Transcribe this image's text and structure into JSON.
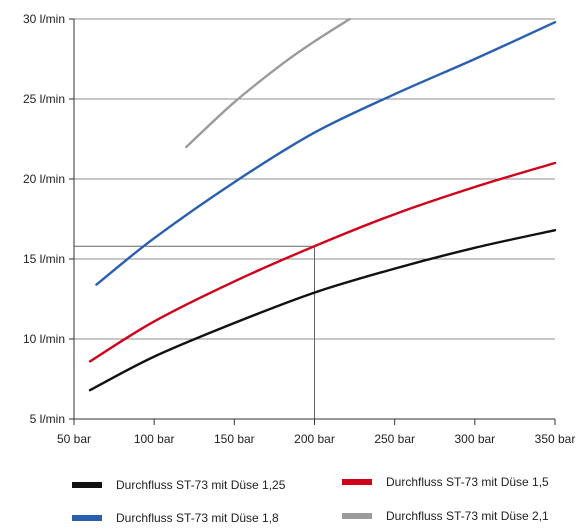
{
  "chart_data": {
    "type": "line",
    "title": "",
    "xlabel": "",
    "ylabel": "",
    "xlim": [
      50,
      350
    ],
    "ylim": [
      5,
      30
    ],
    "x_ticks": [
      {
        "value": 50,
        "label": "50 bar"
      },
      {
        "value": 100,
        "label": "100 bar"
      },
      {
        "value": 150,
        "label": "150 bar"
      },
      {
        "value": 200,
        "label": "200 bar"
      },
      {
        "value": 250,
        "label": "250 bar"
      },
      {
        "value": 300,
        "label": "300 bar"
      },
      {
        "value": 350,
        "label": "350 bar"
      }
    ],
    "y_ticks": [
      {
        "value": 5,
        "label": "5 l/min"
      },
      {
        "value": 10,
        "label": "10 l/min"
      },
      {
        "value": 15,
        "label": "15 l/min"
      },
      {
        "value": 20,
        "label": "20 l/min"
      },
      {
        "value": 25,
        "label": "25 l/min"
      },
      {
        "value": 30,
        "label": "30 l/min"
      }
    ],
    "grid": "horizontal",
    "legend_position": "bottom",
    "reference_point": {
      "x": 200,
      "y": 15.8
    },
    "series": [
      {
        "name": "Durchfluss ST-73 mit Düse 1,25",
        "color": "#111111",
        "points": [
          [
            60,
            6.8
          ],
          [
            100,
            8.9
          ],
          [
            150,
            11.0
          ],
          [
            200,
            12.9
          ],
          [
            250,
            14.4
          ],
          [
            300,
            15.7
          ],
          [
            350,
            16.8
          ]
        ]
      },
      {
        "name": "Durchfluss ST-73 mit Düse 1,5",
        "color": "#d0021b",
        "points": [
          [
            60,
            8.6
          ],
          [
            100,
            11.1
          ],
          [
            150,
            13.6
          ],
          [
            200,
            15.8
          ],
          [
            250,
            17.8
          ],
          [
            300,
            19.5
          ],
          [
            350,
            21.0
          ]
        ]
      },
      {
        "name": "Durchfluss ST-73 mit Düse 1,8",
        "color": "#2a5fb0",
        "points": [
          [
            64,
            13.4
          ],
          [
            100,
            16.3
          ],
          [
            150,
            19.8
          ],
          [
            200,
            22.9
          ],
          [
            250,
            25.3
          ],
          [
            300,
            27.5
          ],
          [
            350,
            29.8
          ]
        ]
      },
      {
        "name": "Durchfluss ST-73 mit Düse 2,1",
        "color": "#9b9b9b",
        "points": [
          [
            120,
            22.0
          ],
          [
            150,
            24.8
          ],
          [
            180,
            27.2
          ],
          [
            200,
            28.6
          ],
          [
            222,
            30.0
          ]
        ]
      }
    ]
  },
  "legend": {
    "items": [
      {
        "label": "Durchfluss ST-73 mit Düse 1,25",
        "color": "#111111"
      },
      {
        "label": "Durchfluss ST-73 mit Düse 1,5",
        "color": "#d0021b"
      },
      {
        "label": "Durchfluss ST-73 mit Düse 1,8",
        "color": "#2a5fb0"
      },
      {
        "label": "Durchfluss ST-73 mit Düse 2,1",
        "color": "#9b9b9b"
      }
    ]
  }
}
